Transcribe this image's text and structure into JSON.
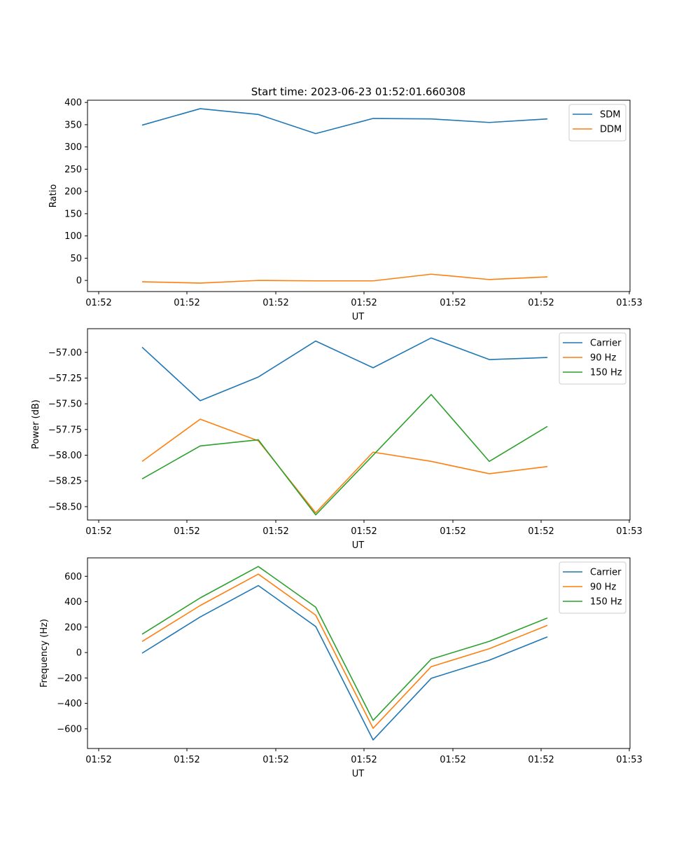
{
  "figure": {
    "title": "Start time: 2023-06-23 01:52:01.660308"
  },
  "chart_data": [
    {
      "type": "line",
      "xlabel": "UT",
      "ylabel": "Ratio",
      "x_tick_labels": [
        "01:52",
        "01:52",
        "01:52",
        "01:52",
        "01:52",
        "01:52",
        "01:53"
      ],
      "x_points": 8,
      "ylim": [
        -25,
        405
      ],
      "y_ticks": [
        0,
        50,
        100,
        150,
        200,
        250,
        300,
        350,
        400
      ],
      "y_tick_labels": [
        "0",
        "50",
        "100",
        "150",
        "200",
        "250",
        "300",
        "350",
        "400"
      ],
      "legend": "top-right",
      "series": [
        {
          "name": "SDM",
          "color": "#1f77b4",
          "values": [
            349,
            386,
            373,
            330,
            364,
            363,
            355,
            363
          ]
        },
        {
          "name": "DDM",
          "color": "#ff7f0e",
          "values": [
            -3,
            -6,
            0,
            -1,
            -1,
            14,
            2,
            8
          ]
        }
      ]
    },
    {
      "type": "line",
      "xlabel": "UT",
      "ylabel": "Power (dB)",
      "x_tick_labels": [
        "01:52",
        "01:52",
        "01:52",
        "01:52",
        "01:52",
        "01:52",
        "01:53"
      ],
      "x_points": 8,
      "ylim": [
        -58.63,
        -56.77
      ],
      "y_ticks": [
        -58.5,
        -58.25,
        -58.0,
        -57.75,
        -57.5,
        -57.25,
        -57.0
      ],
      "y_tick_labels": [
        "−58.50",
        "−58.25",
        "−58.00",
        "−57.75",
        "−57.50",
        "−57.25",
        "−57.00"
      ],
      "legend": "top-right",
      "series": [
        {
          "name": "Carrier",
          "color": "#1f77b4",
          "values": [
            -56.95,
            -57.47,
            -57.24,
            -56.89,
            -57.15,
            -56.86,
            -57.07,
            -57.05
          ]
        },
        {
          "name": "90 Hz",
          "color": "#ff7f0e",
          "values": [
            -58.06,
            -57.65,
            -57.86,
            -58.56,
            -57.97,
            -58.06,
            -58.18,
            -58.11
          ]
        },
        {
          "name": "150 Hz",
          "color": "#2ca02c",
          "values": [
            -58.23,
            -57.91,
            -57.85,
            -58.58,
            -58.0,
            -57.41,
            -58.06,
            -57.72
          ]
        }
      ]
    },
    {
      "type": "line",
      "xlabel": "UT",
      "ylabel": "Frequency (Hz)",
      "x_tick_labels": [
        "01:52",
        "01:52",
        "01:52",
        "01:52",
        "01:52",
        "01:52",
        "01:53"
      ],
      "x_points": 8,
      "ylim": [
        -755,
        745
      ],
      "y_ticks": [
        -600,
        -400,
        -200,
        0,
        200,
        400,
        600
      ],
      "y_tick_labels": [
        "−600",
        "−400",
        "−200",
        "0",
        "200",
        "400",
        "600"
      ],
      "legend": "top-right",
      "series": [
        {
          "name": "Carrier",
          "color": "#1f77b4",
          "values": [
            -5,
            280,
            527,
            205,
            -688,
            -203,
            -60,
            123
          ]
        },
        {
          "name": "90 Hz",
          "color": "#ff7f0e",
          "values": [
            87,
            370,
            617,
            294,
            -596,
            -111,
            30,
            214
          ]
        },
        {
          "name": "150 Hz",
          "color": "#2ca02c",
          "values": [
            144,
            430,
            677,
            357,
            -534,
            -52,
            88,
            272
          ]
        }
      ]
    }
  ]
}
